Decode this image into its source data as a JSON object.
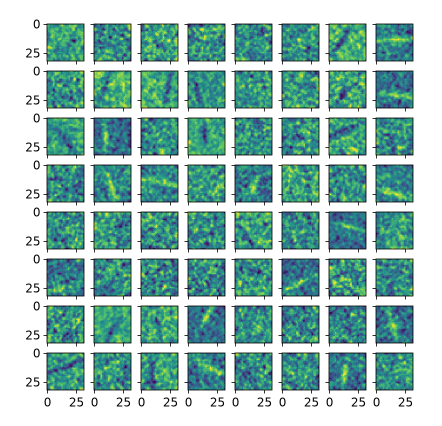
{
  "chart_data": {
    "type": "heatmap",
    "description_grid": "8 x 8 grid of small image subplots",
    "rows": 8,
    "cols": 8,
    "image_size": [
      32,
      32
    ],
    "colormap": "viridis",
    "colormap_stops": [
      "#440154",
      "#3b528b",
      "#21918c",
      "#5ec962",
      "#fde725"
    ],
    "y_ticks": [
      {
        "value": 0,
        "label": "0"
      },
      {
        "value": 25,
        "label": "25"
      }
    ],
    "x_ticks": [
      {
        "value": 0,
        "label": "0"
      },
      {
        "value": 25,
        "label": "25"
      }
    ],
    "y_ticks_on": "first-column",
    "x_ticks_on": "bottom-row",
    "grid": false
  }
}
